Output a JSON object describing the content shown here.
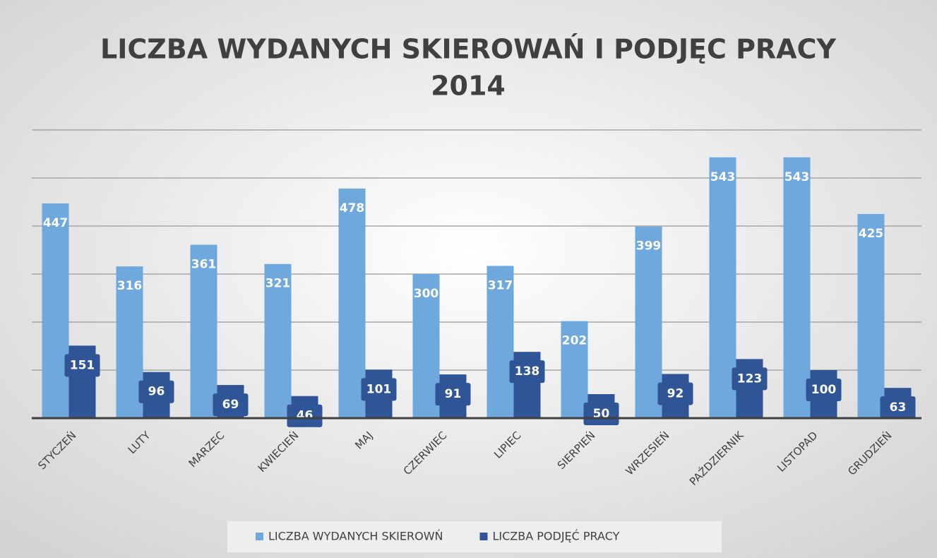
{
  "chart_data": {
    "type": "bar",
    "title": [
      "LICZBA WYDANYCH SKIEROWAŃ I PODJĘC PRACY",
      "2014"
    ],
    "categories": [
      "STYCZEŃ",
      "LUTY",
      "MARZEC",
      "KWIECIEŃ",
      "MAJ",
      "CZERWIEC",
      "LIPIEC",
      "SIERPIEŃ",
      "WRZESIEŃ",
      "PAŹDZIERNIK",
      "LISTOPAD",
      "GRUDZIEŃ"
    ],
    "series": [
      {
        "name": "LICZBA WYDANYCH SKIEROWŃ",
        "color": "#6fa8dc",
        "values": [
          447,
          316,
          361,
          321,
          478,
          300,
          317,
          202,
          399,
          543,
          543,
          425
        ]
      },
      {
        "name": "LICZBA PODJĘĆ PRACY",
        "color": "#2f5597",
        "values": [
          151,
          96,
          69,
          46,
          101,
          91,
          138,
          50,
          92,
          123,
          100,
          63
        ]
      }
    ],
    "ylim": [
      0,
      600
    ],
    "yticks": [
      0,
      100,
      200,
      300,
      400,
      500,
      600
    ],
    "grid": true,
    "legend": "bottom"
  }
}
